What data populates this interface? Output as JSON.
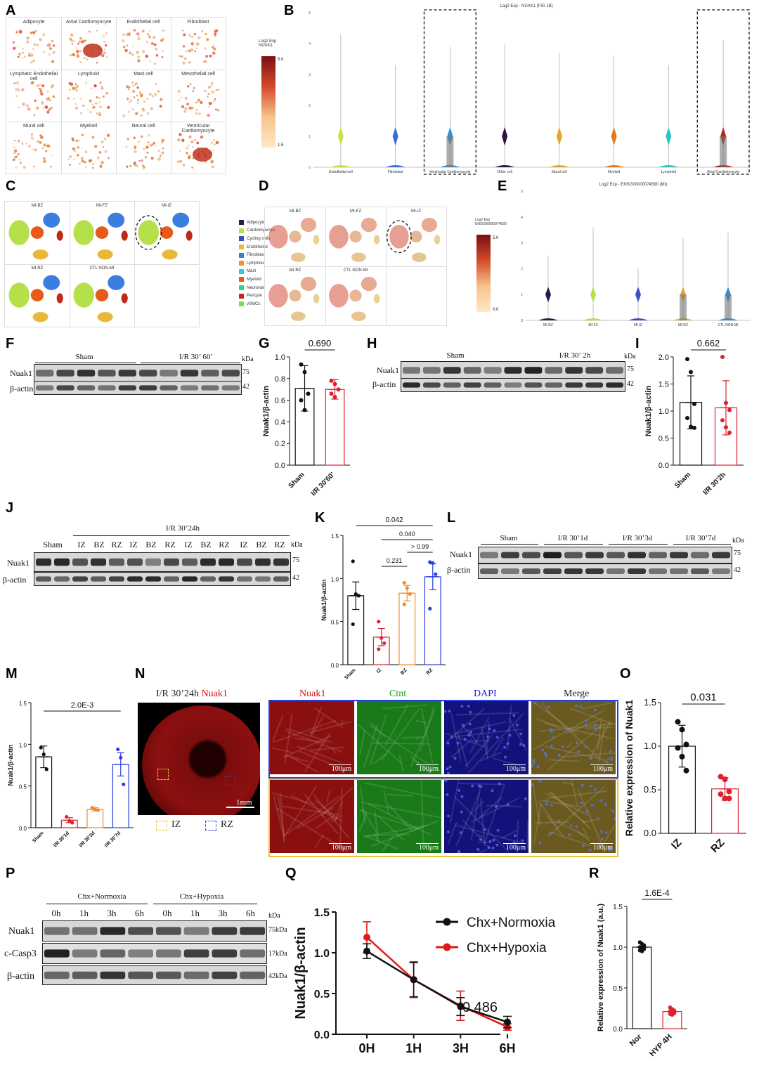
{
  "panels": {
    "A": "A",
    "B": "B",
    "C": "C",
    "D": "D",
    "E": "E",
    "F": "F",
    "G": "G",
    "H": "H",
    "I": "I",
    "J": "J",
    "K": "K",
    "L": "L",
    "M": "M",
    "N": "N",
    "O": "O",
    "P": "P",
    "Q": "Q",
    "R": "R"
  },
  "panel_a": {
    "cells": [
      "Adipocyte",
      "Atrial Cardiomyocyte",
      "Endothelial cell",
      "Fibroblast",
      "Lymphatic Endothelial cell",
      "Lymphoid",
      "Mast cell",
      "Mesothelial cell",
      "Mural cell",
      "Myeloid",
      "Neural cell",
      "Ventricular Cardiomyocyte"
    ],
    "legend_title": "Log2 Exp\nNUAK1",
    "legend_max": "5.0",
    "legend_min": "1.5"
  },
  "panel_b": {
    "title": "Log2 Exp - NUAK1 (FIG 1B)",
    "categories": [
      "Endothelial cell",
      "Fibroblast",
      "Ventricular Cardiomyocyte",
      "Other cell",
      "Mural cell",
      "Myeloid",
      "Lymphoid",
      "Atrial Cardiomyocyte"
    ],
    "yticks": [
      "0",
      "1",
      "2",
      "3",
      "4",
      "5"
    ],
    "colors": [
      "#c6e04a",
      "#3a6fd8",
      "#2e8fd6",
      "#2a1540",
      "#e0a832",
      "#e07a22",
      "#2ec4c4",
      "#b8261a"
    ]
  },
  "panel_c": {
    "cells": [
      "MI-BZ",
      "MI-FZ",
      "MI-IZ",
      "MI-RZ",
      "CTL NON-MI"
    ],
    "legend": [
      {
        "name": "Adipocyte",
        "color": "#2b1a48"
      },
      {
        "name": "Cardiomyocyte",
        "color": "#b6e04a"
      },
      {
        "name": "Cycling cells",
        "color": "#3a4fc0"
      },
      {
        "name": "Endothelial",
        "color": "#e8b83a"
      },
      {
        "name": "Fibroblast",
        "color": "#3a7fe0"
      },
      {
        "name": "Lymphoid",
        "color": "#f09030"
      },
      {
        "name": "Mast",
        "color": "#34c8d8"
      },
      {
        "name": "Myeloid",
        "color": "#e85a1a"
      },
      {
        "name": "Neuronal",
        "color": "#2ed890"
      },
      {
        "name": "Pericyte",
        "color": "#c0281a"
      },
      {
        "name": "vSMCs",
        "color": "#7ee04a"
      }
    ]
  },
  "panel_d": {
    "cells": [
      "MI-BZ",
      "MI-FZ",
      "MI-IZ",
      "MI-RZ",
      "CTL NON-MI"
    ]
  },
  "panel_e": {
    "title": "Log2 Exp - ENSG00000074590 (MI)",
    "legend_title": "Log2 Exp\nENSG00000074590",
    "legend_max": "5.0",
    "legend_min": "0.0",
    "categories": [
      "MI-RZ",
      "MI-FZ",
      "MI-IZ",
      "MI-RZ",
      "CTL NON-MI"
    ],
    "yticks": [
      "0",
      "1",
      "2",
      "3",
      "4",
      "5"
    ],
    "colors": [
      "#2b1a48",
      "#b6e04a",
      "#3a4fc0",
      "#e0a832",
      "#2e8fd6"
    ]
  },
  "panel_f": {
    "groups": [
      "Sham",
      "I/R 30’ 60’"
    ],
    "rows": [
      "Nuak1",
      "β-actin"
    ],
    "mw": [
      "75",
      "42"
    ],
    "kda": "kDa"
  },
  "panel_g": {
    "pvalue": "0.690",
    "ylabel": "Nuak1/β-actin",
    "categories": [
      "Sham",
      "I/R 30'60'"
    ],
    "yticks": [
      "0.0",
      "0.2",
      "0.4",
      "0.6",
      "0.8",
      "1.0"
    ]
  },
  "panel_h": {
    "groups": [
      "Sham",
      "I/R 30’ 2h"
    ],
    "rows": [
      "Nuak1",
      "β-actin"
    ],
    "mw": [
      "75",
      "42"
    ],
    "kda": "kDa"
  },
  "panel_i": {
    "pvalue": "0.662",
    "ylabel": "Nuak1/β-actin",
    "categories": [
      "Sham",
      "I/R 30'2h"
    ],
    "yticks": [
      "0.0",
      "0.5",
      "1.0",
      "1.5",
      "2.0"
    ]
  },
  "panel_j": {
    "top_group": "I/R 30’24h",
    "lanes": [
      "Sham",
      "IZ",
      "BZ",
      "RZ",
      "IZ",
      "BZ",
      "RZ",
      "IZ",
      "BZ",
      "RZ",
      "IZ",
      "BZ",
      "RZ"
    ],
    "rows": [
      "Nuak1",
      "β-actin"
    ],
    "mw": [
      "75",
      "42"
    ],
    "kda": "kDa"
  },
  "panel_k": {
    "ylabel": "Nuak1/β-actin",
    "categories": [
      "Sham",
      "IZ",
      "BZ",
      "RZ"
    ],
    "yticks": [
      "0.0",
      "0.5",
      "1.0",
      "1.5"
    ],
    "pvalues": [
      "0.042",
      "0.040",
      "> 0.99",
      "0.231"
    ]
  },
  "panel_l": {
    "groups": [
      "Sham",
      "I/R 30’1d",
      "I/R 30’3d",
      "I/R 30’7d"
    ],
    "rows": [
      "Nuak1",
      "β-actin"
    ],
    "mw": [
      "75",
      "42"
    ],
    "kda": "kDa"
  },
  "panel_m": {
    "pvalue": "2.0E-3",
    "ylabel": "Nuak1/β-actin",
    "categories": [
      "Sham",
      "I/R 30'1d",
      "I/R 30'3d",
      "I/R 30'7d"
    ],
    "yticks": [
      "0.0",
      "0.5",
      "1.0",
      "1.5"
    ]
  },
  "panel_n": {
    "title_black": "I/R 30’24h",
    "title_red": "Nuak1",
    "scale_big": "1mm",
    "legend_iz": "IZ",
    "legend_rz": "RZ",
    "channels": [
      "Nuak1",
      "Ctnt",
      "DAPI",
      "Merge"
    ],
    "scale_small": "100μm"
  },
  "panel_o": {
    "pvalue": "0.031",
    "ylabel": "Relative expression of Nuak1",
    "categories": [
      "IZ",
      "RZ"
    ],
    "yticks": [
      "0.0",
      "0.5",
      "1.0",
      "1.5"
    ]
  },
  "panel_p": {
    "groups": [
      "Chx+Normoxia",
      "Chx+Hypoxia"
    ],
    "lanes": [
      "0h",
      "1h",
      "3h",
      "6h",
      "0h",
      "1h",
      "3h",
      "6h"
    ],
    "rows": [
      "Nuak1",
      "c-Casp3",
      "β-actin"
    ],
    "mw": [
      "75kDa",
      "17kDa",
      "42kDa"
    ],
    "kda": "kDa"
  },
  "panel_q": {
    "ylabel": "Nuak1/β-actin",
    "pvalue": "0.486",
    "yticks": [
      "0.0",
      "0.5",
      "1.0",
      "1.5"
    ],
    "chart_data": {
      "type": "line",
      "x": [
        "0H",
        "1H",
        "3H",
        "6H"
      ],
      "series": [
        {
          "name": "Chx+Normoxia",
          "values": [
            1.02,
            0.67,
            0.34,
            0.15
          ],
          "errors": [
            0.09,
            0.21,
            0.11,
            0.07
          ],
          "color": "#111111"
        },
        {
          "name": "Chx+Hypoxia",
          "values": [
            1.19,
            0.67,
            0.35,
            0.09
          ],
          "errors": [
            0.19,
            0.22,
            0.18,
            0.04
          ],
          "color": "#e01a1a"
        }
      ],
      "ylim": [
        0,
        1.5
      ]
    }
  },
  "panel_r": {
    "pvalue": "1.6E-4",
    "ylabel": "Relative expression of Nuak1 (a.u.)",
    "categories": [
      "Nor",
      "HYP 4H"
    ],
    "yticks": [
      "0.0",
      "0.5",
      "1.0",
      "1.5"
    ]
  },
  "chart_data": [
    {
      "id": "G",
      "type": "bar",
      "categories": [
        "Sham",
        "I/R 30'60'"
      ],
      "values": [
        0.71,
        0.7
      ],
      "errors": [
        0.21,
        0.09
      ],
      "points": [
        [
          0.93,
          0.86,
          0.66,
          0.6,
          0.51
        ],
        [
          0.78,
          0.75,
          0.7,
          0.66,
          0.63
        ]
      ],
      "colors": [
        "#111111",
        "#e0202a"
      ],
      "ylim": [
        0,
        1.0
      ]
    },
    {
      "id": "I",
      "type": "bar",
      "categories": [
        "Sham",
        "I/R 30'2h"
      ],
      "values": [
        1.16,
        1.06
      ],
      "errors": [
        0.49,
        0.5
      ],
      "points": [
        [
          1.96,
          1.72,
          1.13,
          0.87,
          0.71,
          0.69
        ],
        [
          2.0,
          1.15,
          1.02,
          0.83,
          0.7,
          0.6
        ]
      ],
      "colors": [
        "#111111",
        "#e0202a"
      ],
      "ylim": [
        0,
        2.0
      ]
    },
    {
      "id": "K",
      "type": "bar",
      "categories": [
        "Sham",
        "IZ",
        "BZ",
        "RZ"
      ],
      "values": [
        0.8,
        0.32,
        0.83,
        1.02
      ],
      "errors": [
        0.16,
        0.1,
        0.09,
        0.15
      ],
      "points": [
        [
          1.2,
          0.82,
          0.8,
          0.47
        ],
        [
          0.5,
          0.31,
          0.25,
          0.18
        ],
        [
          0.95,
          0.89,
          0.82,
          0.7
        ],
        [
          1.19,
          1.18,
          1.05,
          0.65
        ]
      ],
      "colors": [
        "#111111",
        "#e0202a",
        "#f08a30",
        "#2a3fe0"
      ],
      "ylim": [
        0,
        1.5
      ]
    },
    {
      "id": "M",
      "type": "bar",
      "categories": [
        "Sham",
        "I/R 30'1d",
        "I/R 30'3d",
        "I/R 30'7d"
      ],
      "values": [
        0.85,
        0.09,
        0.22,
        0.76
      ],
      "errors": [
        0.13,
        0.03,
        0.02,
        0.14
      ],
      "points": [
        [
          0.96,
          0.88,
          0.7
        ],
        [
          0.13,
          0.08,
          0.06
        ],
        [
          0.24,
          0.22,
          0.21
        ],
        [
          0.94,
          0.84,
          0.52
        ]
      ],
      "colors": [
        "#111111",
        "#e0202a",
        "#f08a30",
        "#2a3fe0"
      ],
      "ylim": [
        0,
        1.5
      ]
    },
    {
      "id": "O",
      "type": "bar",
      "categories": [
        "IZ",
        "RZ"
      ],
      "values": [
        1.0,
        0.51
      ],
      "errors": [
        0.24,
        0.13
      ],
      "points": [
        [
          1.28,
          1.19,
          1.02,
          0.98,
          0.88,
          0.72
        ],
        [
          0.65,
          0.62,
          0.48,
          0.45,
          0.4,
          0.4
        ]
      ],
      "colors": [
        "#111111",
        "#e0202a"
      ],
      "ylim": [
        0,
        1.5
      ]
    },
    {
      "id": "R",
      "type": "bar",
      "categories": [
        "Nor",
        "HYP 4H"
      ],
      "values": [
        1.0,
        0.21
      ],
      "errors": [
        0.04,
        0.03
      ],
      "points": [
        [
          1.06,
          1.04,
          1.02,
          1.0,
          0.99,
          0.98,
          0.96,
          0.95
        ],
        [
          0.26,
          0.24,
          0.22,
          0.21,
          0.2,
          0.19,
          0.18,
          0.17
        ]
      ],
      "colors": [
        "#111111",
        "#e0202a"
      ],
      "ylim": [
        0,
        1.5
      ]
    }
  ]
}
